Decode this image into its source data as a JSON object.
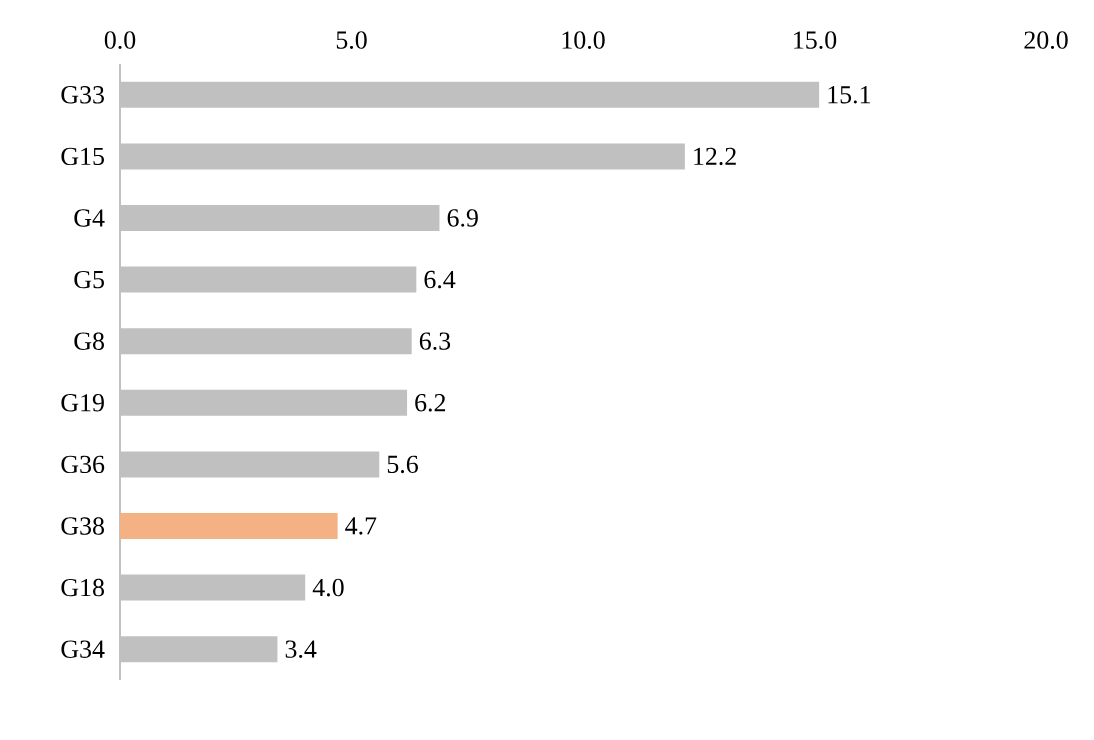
{
  "chart_data": {
    "type": "bar",
    "orientation": "horizontal",
    "categories": [
      "G33",
      "G15",
      "G4",
      "G5",
      "G8",
      "G19",
      "G36",
      "G38",
      "G18",
      "G34"
    ],
    "values": [
      15.1,
      12.2,
      6.9,
      6.4,
      6.3,
      6.2,
      5.6,
      4.7,
      4.0,
      3.4
    ],
    "value_labels": [
      "15.1",
      "12.2",
      "6.9",
      "6.4",
      "6.3",
      "6.2",
      "5.6",
      "4.7",
      "4.0",
      "3.4"
    ],
    "colors": [
      "#c0c0c0",
      "#c0c0c0",
      "#c0c0c0",
      "#c0c0c0",
      "#c0c0c0",
      "#c0c0c0",
      "#c0c0c0",
      "#f4b183",
      "#c0c0c0",
      "#c0c0c0"
    ],
    "xlim": [
      0,
      20
    ],
    "xticks": [
      {
        "value": 0,
        "label": "0.0"
      },
      {
        "value": 5,
        "label": "5.0"
      },
      {
        "value": 10,
        "label": "10.0"
      },
      {
        "value": 15,
        "label": "15.0"
      },
      {
        "value": 20,
        "label": "20.0"
      }
    ],
    "grid": false
  }
}
